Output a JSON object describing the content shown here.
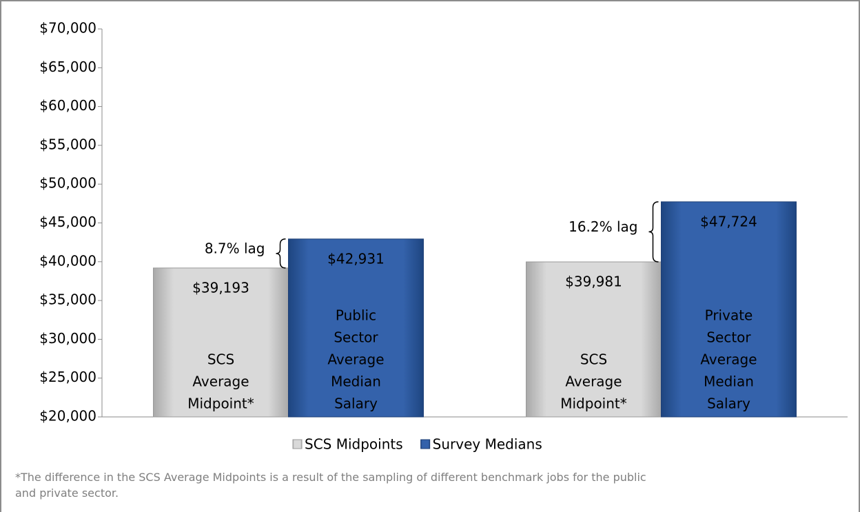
{
  "chart_data": {
    "type": "bar",
    "categories": [
      null,
      null
    ],
    "series": [
      {
        "name": "SCS Midpoints",
        "color": "#c8c8c8",
        "values": [
          39193,
          39981
        ],
        "value_labels": [
          "$39,193",
          "$39,981"
        ],
        "bar_labels": [
          [
            "SCS",
            "Average",
            "Midpoint*"
          ],
          [
            "SCS",
            "Average",
            "Midpoint*"
          ]
        ]
      },
      {
        "name": "Survey Medians",
        "color": "#2f5ea6",
        "values": [
          42931,
          47724
        ],
        "value_labels": [
          "$42,931",
          "$47,724"
        ],
        "bar_labels": [
          [
            "Public",
            "Sector",
            "Average",
            "Median",
            "Salary"
          ],
          [
            "Private",
            "Sector",
            "Average",
            "Median",
            "Salary"
          ]
        ]
      }
    ],
    "annotations": [
      "8.7% lag",
      "16.2% lag"
    ],
    "ylim": [
      20000,
      70000
    ],
    "yticks": [
      {
        "value": 20000,
        "label": "$20,000"
      },
      {
        "value": 25000,
        "label": "$25,000"
      },
      {
        "value": 30000,
        "label": "$30,000"
      },
      {
        "value": 35000,
        "label": "$35,000"
      },
      {
        "value": 40000,
        "label": "$40,000"
      },
      {
        "value": 45000,
        "label": "$45,000"
      },
      {
        "value": 50000,
        "label": "$50,000"
      },
      {
        "value": 55000,
        "label": "$55,000"
      },
      {
        "value": 60000,
        "label": "$60,000"
      },
      {
        "value": 65000,
        "label": "$65,000"
      },
      {
        "value": 70000,
        "label": "$70,000"
      }
    ],
    "legend": "bottom",
    "footnote": [
      "*The difference in the SCS Average Midpoints is a result of the sampling of different benchmark jobs for the public",
      "and private sector."
    ]
  }
}
